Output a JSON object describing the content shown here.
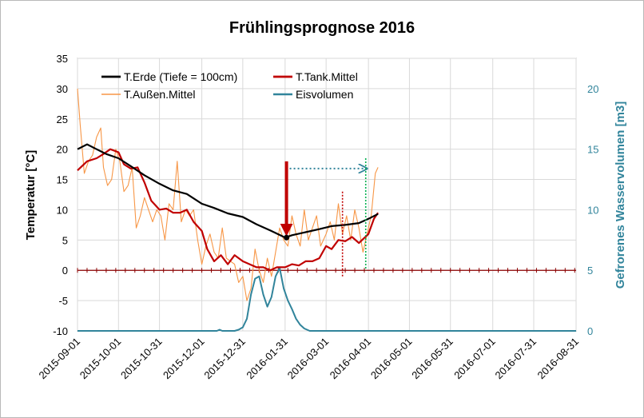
{
  "chart_data": {
    "type": "line",
    "title": "Frühlingsprognose 2016",
    "ylabel": "Temperatur [°C]",
    "y2label": "Gefrorenes Wasservolumen [m3]",
    "ylim": [
      -10,
      35
    ],
    "y_ticks": [
      "35",
      "30",
      "25",
      "20",
      "15",
      "10",
      "5",
      "0",
      "-5",
      "-10"
    ],
    "y2lim": [
      0,
      22.5
    ],
    "y2_ticks": [
      "20",
      "15",
      "10",
      "5",
      "0"
    ],
    "x_ticks": [
      "2015-09-01",
      "2015-10-01",
      "2015-10-31",
      "2015-12-01",
      "2015-12-31",
      "2016-01-31",
      "2016-03-01",
      "2016-04-01",
      "2016-05-01",
      "2016-05-31",
      "2016-07-01",
      "2016-07-31",
      "2016-08-31"
    ],
    "xlim": [
      "2015-09-01",
      "2016-08-31"
    ],
    "grid": true,
    "legend_position": "top-left",
    "colors": {
      "erde": "#000000",
      "tank": "#c00000",
      "aussen": "#f79646",
      "eis": "#31849b",
      "arrow": "#c00000",
      "forecast_arrow": "#31849b",
      "marker_red": "#c00000",
      "marker_green": "#00b050"
    },
    "series": [
      {
        "name": "T.Erde (Tiefe = 100cm)",
        "axis": "left",
        "x": [
          "2015-09-01",
          "2015-09-08",
          "2015-09-15",
          "2015-09-22",
          "2015-10-01",
          "2015-10-10",
          "2015-10-20",
          "2015-10-31",
          "2015-11-10",
          "2015-11-20",
          "2015-12-01",
          "2015-12-10",
          "2015-12-20",
          "2015-12-31",
          "2016-01-10",
          "2016-01-20",
          "2016-01-31",
          "2016-02-05",
          "2016-02-15",
          "2016-02-25",
          "2016-03-05",
          "2016-03-15",
          "2016-03-25",
          "2016-04-01",
          "2016-04-08"
        ],
        "values": [
          20.0,
          20.8,
          20.0,
          19.2,
          18.5,
          17.2,
          15.7,
          14.3,
          13.2,
          12.6,
          11.0,
          10.3,
          9.4,
          8.8,
          7.6,
          6.6,
          5.4,
          5.8,
          6.3,
          6.8,
          7.3,
          7.5,
          7.8,
          8.5,
          9.3
        ]
      },
      {
        "name": "T.Tank.Mittel",
        "axis": "left",
        "x": [
          "2015-09-01",
          "2015-09-08",
          "2015-09-15",
          "2015-09-20",
          "2015-09-25",
          "2015-10-01",
          "2015-10-05",
          "2015-10-10",
          "2015-10-15",
          "2015-10-20",
          "2015-10-25",
          "2015-10-31",
          "2015-11-05",
          "2015-11-10",
          "2015-11-15",
          "2015-11-20",
          "2015-11-25",
          "2015-12-01",
          "2015-12-05",
          "2015-12-10",
          "2015-12-15",
          "2015-12-20",
          "2015-12-25",
          "2015-12-31",
          "2016-01-05",
          "2016-01-10",
          "2016-01-15",
          "2016-01-20",
          "2016-01-25",
          "2016-01-31",
          "2016-02-05",
          "2016-02-10",
          "2016-02-15",
          "2016-02-20",
          "2016-02-25",
          "2016-03-01",
          "2016-03-05",
          "2016-03-10",
          "2016-03-15",
          "2016-03-20",
          "2016-03-25",
          "2016-04-01",
          "2016-04-05",
          "2016-04-08"
        ],
        "values": [
          16.5,
          18.0,
          18.5,
          19.2,
          20.0,
          19.5,
          17.5,
          16.8,
          17.0,
          14.5,
          11.5,
          10.0,
          10.2,
          9.5,
          9.5,
          10.0,
          8.0,
          6.5,
          3.5,
          1.5,
          2.5,
          1.0,
          2.5,
          1.5,
          1.0,
          0.5,
          0.5,
          0.0,
          0.5,
          0.5,
          1.0,
          0.8,
          1.5,
          1.5,
          2.0,
          4.0,
          3.5,
          5.0,
          4.8,
          5.5,
          4.5,
          6.0,
          8.5,
          9.5
        ]
      },
      {
        "name": "T.Außen.Mittel",
        "axis": "left",
        "x": [
          "2015-09-01",
          "2015-09-03",
          "2015-09-06",
          "2015-09-09",
          "2015-09-12",
          "2015-09-15",
          "2015-09-18",
          "2015-09-20",
          "2015-09-23",
          "2015-09-26",
          "2015-09-29",
          "2015-10-02",
          "2015-10-05",
          "2015-10-08",
          "2015-10-11",
          "2015-10-14",
          "2015-10-17",
          "2015-10-20",
          "2015-10-23",
          "2015-10-26",
          "2015-10-29",
          "2015-11-01",
          "2015-11-04",
          "2015-11-07",
          "2015-11-10",
          "2015-11-13",
          "2015-11-16",
          "2015-11-19",
          "2015-11-22",
          "2015-11-25",
          "2015-11-28",
          "2015-12-01",
          "2015-12-04",
          "2015-12-07",
          "2015-12-10",
          "2015-12-13",
          "2015-12-16",
          "2015-12-19",
          "2015-12-22",
          "2015-12-25",
          "2015-12-28",
          "2015-12-31",
          "2016-01-03",
          "2016-01-06",
          "2016-01-09",
          "2016-01-12",
          "2016-01-15",
          "2016-01-18",
          "2016-01-21",
          "2016-01-24",
          "2016-01-27",
          "2016-01-30",
          "2016-02-02",
          "2016-02-05",
          "2016-02-08",
          "2016-02-11",
          "2016-02-14",
          "2016-02-17",
          "2016-02-20",
          "2016-02-23",
          "2016-02-26",
          "2016-03-01",
          "2016-03-04",
          "2016-03-07",
          "2016-03-10",
          "2016-03-13",
          "2016-03-16",
          "2016-03-19",
          "2016-03-22",
          "2016-03-25",
          "2016-03-28",
          "2016-03-31",
          "2016-04-03",
          "2016-04-06",
          "2016-04-08"
        ],
        "values": [
          30.0,
          24.0,
          16.0,
          18.0,
          19.0,
          22.0,
          23.5,
          17.0,
          14.0,
          15.0,
          20.0,
          18.0,
          13.0,
          14.0,
          17.0,
          7.0,
          9.0,
          12.0,
          10.0,
          8.0,
          10.0,
          9.0,
          5.0,
          11.0,
          10.0,
          18.0,
          8.0,
          10.0,
          9.0,
          10.0,
          5.0,
          1.0,
          4.0,
          6.0,
          3.0,
          2.0,
          7.0,
          2.0,
          1.5,
          1.0,
          -2.0,
          -1.0,
          -5.0,
          -3.0,
          3.5,
          0.0,
          -2.0,
          2.0,
          -1.0,
          3.0,
          7.0,
          5.0,
          4.0,
          9.0,
          6.0,
          4.0,
          10.0,
          5.0,
          7.0,
          9.0,
          4.0,
          6.0,
          8.0,
          5.0,
          11.0,
          6.0,
          9.0,
          5.0,
          10.0,
          7.0,
          3.0,
          6.0,
          9.0,
          16.0,
          17.0
        ]
      },
      {
        "name": "Eisvolumen",
        "axis": "right",
        "x": [
          "2015-09-01",
          "2015-12-12",
          "2015-12-14",
          "2015-12-16",
          "2015-12-18",
          "2015-12-25",
          "2015-12-28",
          "2015-12-31",
          "2016-01-03",
          "2016-01-06",
          "2016-01-09",
          "2016-01-12",
          "2016-01-15",
          "2016-01-18",
          "2016-01-21",
          "2016-01-24",
          "2016-01-27",
          "2016-01-30",
          "2016-02-02",
          "2016-02-05",
          "2016-02-08",
          "2016-02-11",
          "2016-02-14",
          "2016-02-18",
          "2016-02-25",
          "2016-08-31"
        ],
        "values": [
          0.0,
          0.0,
          0.1,
          0.0,
          0.0,
          0.0,
          0.1,
          0.3,
          1.0,
          3.0,
          4.3,
          4.5,
          3.0,
          2.0,
          2.8,
          4.5,
          5.2,
          3.5,
          2.5,
          1.8,
          1.0,
          0.5,
          0.2,
          0.0,
          0.0,
          0.0
        ]
      }
    ],
    "annotations": [
      {
        "type": "arrow-down",
        "label": "",
        "x": "2016-02-01",
        "y_from": 18.0,
        "y_to": 5.6
      },
      {
        "type": "point",
        "label": "",
        "x": "2016-02-01",
        "y": 5.4
      },
      {
        "type": "dotted-arrow-right",
        "label": "",
        "x_from": "2016-02-01",
        "x_to": "2016-04-01",
        "y": 16.8
      },
      {
        "type": "dotted-vline",
        "label": "",
        "x": "2016-03-13",
        "y_from": 13.0,
        "y_to": -1.0
      },
      {
        "type": "dotted-vline",
        "label": "",
        "x": "2016-03-30",
        "y_from": 18.5,
        "y_to": 0.0
      }
    ]
  }
}
